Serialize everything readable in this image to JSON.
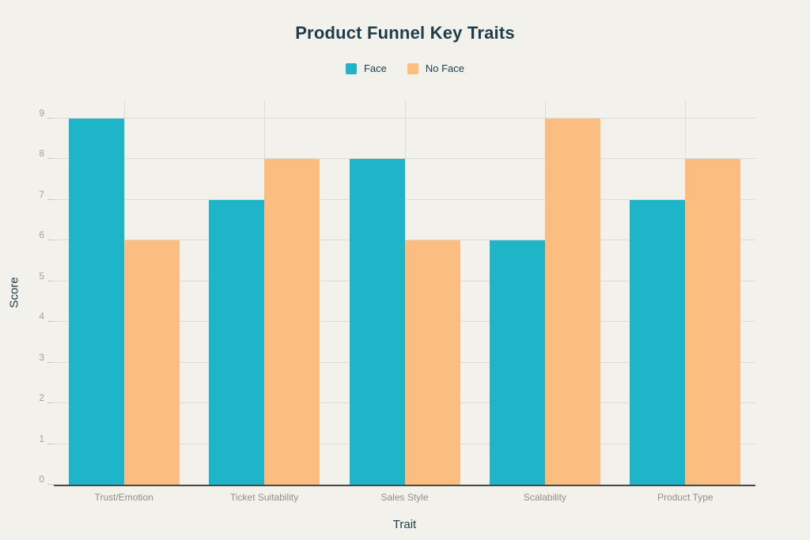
{
  "chart_data": {
    "type": "bar",
    "title": "Product Funnel Key Traits",
    "xlabel": "Trait",
    "ylabel": "Score",
    "categories": [
      "Trust/Emotion",
      "Ticket Suitability",
      "Sales Style",
      "Scalability",
      "Product Type"
    ],
    "series": [
      {
        "name": "Face",
        "color": "#1fb5c9",
        "values": [
          9,
          7,
          8,
          6,
          7
        ]
      },
      {
        "name": "No Face",
        "color": "#fbbd80",
        "values": [
          6,
          8,
          6,
          9,
          8
        ]
      }
    ],
    "ylim": [
      0,
      9
    ],
    "yticks": [
      0,
      1,
      2,
      3,
      4,
      5,
      6,
      7,
      8,
      9
    ],
    "grid": true,
    "legend_position": "top"
  },
  "colors": {
    "background": "#f2f1eb",
    "gridline": "#dedcd5",
    "axis_line": "#45474b",
    "title_text": "#1d3d4c",
    "tick_text": "#a09f9a",
    "category_text": "#8f8e89",
    "series_face": "#1fb5c9",
    "series_no_face": "#fbbd80"
  }
}
